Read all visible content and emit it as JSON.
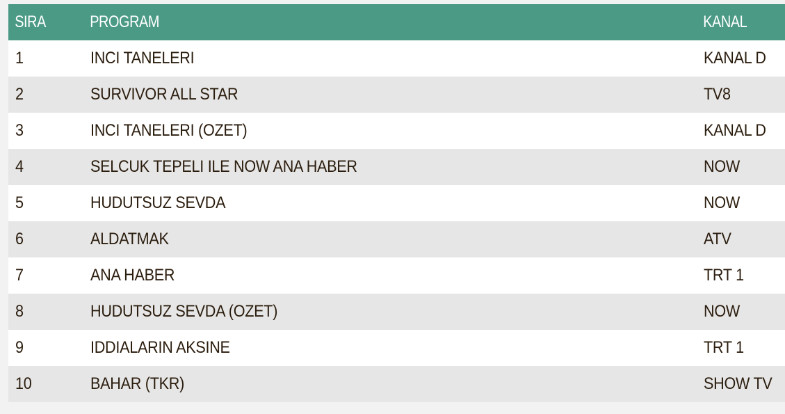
{
  "table": {
    "colors": {
      "header_bg": "#4a9a85",
      "header_text": "#ffffff",
      "row_odd": "#ffffff",
      "row_even": "#e6e6e6",
      "text": "#2b1d0e"
    },
    "headers": {
      "rank": "SIRA",
      "program": "PROGRAM",
      "channel": "KANAL"
    },
    "rows": [
      {
        "rank": "1",
        "program": "INCI TANELERI",
        "channel": "KANAL D"
      },
      {
        "rank": "2",
        "program": "SURVIVOR ALL STAR",
        "channel": "TV8"
      },
      {
        "rank": "3",
        "program": "INCI TANELERI (OZET)",
        "channel": "KANAL D"
      },
      {
        "rank": "4",
        "program": "SELCUK TEPELI ILE NOW ANA HABER",
        "channel": "NOW"
      },
      {
        "rank": "5",
        "program": "HUDUTSUZ SEVDA",
        "channel": "NOW"
      },
      {
        "rank": "6",
        "program": "ALDATMAK",
        "channel": "ATV"
      },
      {
        "rank": "7",
        "program": "ANA HABER",
        "channel": "TRT 1"
      },
      {
        "rank": "8",
        "program": "HUDUTSUZ SEVDA (OZET)",
        "channel": "NOW"
      },
      {
        "rank": "9",
        "program": "IDDIALARIN AKSINE",
        "channel": "TRT 1"
      },
      {
        "rank": "10",
        "program": "BAHAR (TKR)",
        "channel": "SHOW TV"
      }
    ]
  }
}
